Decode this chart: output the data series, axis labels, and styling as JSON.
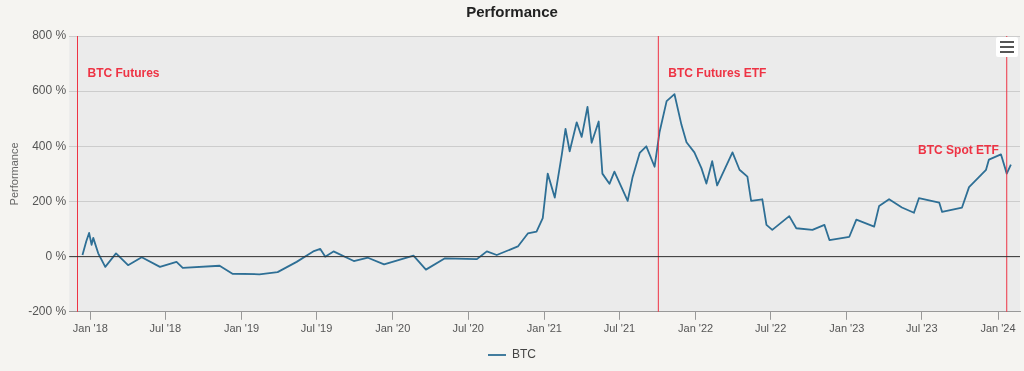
{
  "chart_data": {
    "type": "line",
    "title": "Performance",
    "ylabel": "Performance",
    "x": [
      "2017-12-13",
      "2017-12-22",
      "2017-12-29",
      "2018-01-04",
      "2018-01-08",
      "2018-01-20",
      "2018-02-06",
      "2018-03-04",
      "2018-04-02",
      "2018-05-05",
      "2018-06-18",
      "2018-07-28",
      "2018-08-12",
      "2018-11-09",
      "2018-12-10",
      "2019-02-13",
      "2019-03-29",
      "2019-05-14",
      "2019-06-23",
      "2019-07-10",
      "2019-07-22",
      "2019-08-11",
      "2019-09-29",
      "2019-11-02",
      "2019-12-11",
      "2020-02-20",
      "2020-03-21",
      "2020-05-06",
      "2020-07-22",
      "2020-08-15",
      "2020-09-08",
      "2020-10-29",
      "2020-11-22",
      "2020-12-13",
      "2020-12-28",
      "2021-01-09",
      "2021-01-26",
      "2021-02-12",
      "2021-02-21",
      "2021-03-03",
      "2021-03-20",
      "2021-04-01",
      "2021-04-15",
      "2021-04-25",
      "2021-05-12",
      "2021-05-21",
      "2021-06-07",
      "2021-06-19",
      "2021-07-21",
      "2021-08-02",
      "2021-08-19",
      "2021-09-04",
      "2021-09-24",
      "2021-10-06",
      "2021-10-23",
      "2021-11-11",
      "2021-11-28",
      "2021-12-10",
      "2021-12-29",
      "2022-01-15",
      "2022-01-27",
      "2022-02-10",
      "2022-02-22",
      "2022-03-31",
      "2022-04-17",
      "2022-05-06",
      "2022-05-15",
      "2022-06-11",
      "2022-06-21",
      "2022-07-05",
      "2022-08-15",
      "2022-09-01",
      "2022-10-10",
      "2022-11-08",
      "2022-11-20",
      "2023-01-07",
      "2023-01-24",
      "2023-03-08",
      "2023-03-20",
      "2023-04-13",
      "2023-05-14",
      "2023-06-12",
      "2023-06-24",
      "2023-08-12",
      "2023-08-19",
      "2023-10-06",
      "2023-10-23",
      "2023-12-03",
      "2023-12-10",
      "2024-01-08",
      "2024-01-22",
      "2024-02-01"
    ],
    "series": [
      {
        "name": "BTC",
        "color": "#2e6f95",
        "values": [
          6,
          55,
          86,
          43,
          68,
          12,
          -37,
          12,
          -31,
          -2,
          -37,
          -19,
          -41,
          -33,
          -62,
          -64,
          -56,
          -19,
          19,
          28,
          0,
          19,
          -16,
          -4,
          -28,
          4,
          -47,
          -6,
          -9,
          19,
          6,
          37,
          84,
          91,
          140,
          301,
          214,
          370,
          463,
          382,
          487,
          434,
          543,
          413,
          490,
          301,
          264,
          308,
          202,
          289,
          376,
          400,
          326,
          452,
          564,
          589,
          477,
          415,
          378,
          321,
          265,
          346,
          258,
          378,
          315,
          290,
          202,
          208,
          115,
          97,
          147,
          103,
          97,
          115,
          60,
          72,
          134,
          109,
          184,
          208,
          178,
          159,
          212,
          196,
          162,
          178,
          252,
          315,
          352,
          371,
          301,
          334
        ]
      }
    ],
    "xlim": [
      "2017-11-11",
      "2024-02-23"
    ],
    "xticks": [
      {
        "value": "2018-01-01",
        "label": "Jan '18"
      },
      {
        "value": "2018-07-01",
        "label": "Jul '18"
      },
      {
        "value": "2019-01-01",
        "label": "Jan '19"
      },
      {
        "value": "2019-07-01",
        "label": "Jul '19"
      },
      {
        "value": "2020-01-01",
        "label": "Jan '20"
      },
      {
        "value": "2020-07-01",
        "label": "Jul '20"
      },
      {
        "value": "2021-01-01",
        "label": "Jan '21"
      },
      {
        "value": "2021-07-01",
        "label": "Jul '21"
      },
      {
        "value": "2022-01-01",
        "label": "Jan '22"
      },
      {
        "value": "2022-07-01",
        "label": "Jul '22"
      },
      {
        "value": "2023-01-01",
        "label": "Jan '23"
      },
      {
        "value": "2023-07-01",
        "label": "Jul '23"
      },
      {
        "value": "2024-01-01",
        "label": "Jan '24"
      }
    ],
    "ylim": [
      -200,
      800
    ],
    "yticks": [
      {
        "value": -200,
        "label": "-200 %"
      },
      {
        "value": 0,
        "label": "0 %"
      },
      {
        "value": 200,
        "label": "200 %"
      },
      {
        "value": 400,
        "label": "400 %"
      },
      {
        "value": 600,
        "label": "600 %"
      },
      {
        "value": 800,
        "label": "800 %"
      }
    ],
    "ref_lines": [
      {
        "axis": "x",
        "value": "2017-12-01",
        "label": "BTC Futures",
        "color": "#ee3344"
      },
      {
        "axis": "x",
        "value": "2021-10-03",
        "label": "BTC Futures ETF",
        "color": "#ee3344"
      },
      {
        "axis": "x",
        "value": "2024-01-22",
        "label": "BTC Spot ETF",
        "color": "#ee3344"
      },
      {
        "axis": "y",
        "value": 0,
        "color": "#333333"
      }
    ],
    "grid": "y",
    "legend": "bottom",
    "marker": "none",
    "line_style": "solid"
  }
}
